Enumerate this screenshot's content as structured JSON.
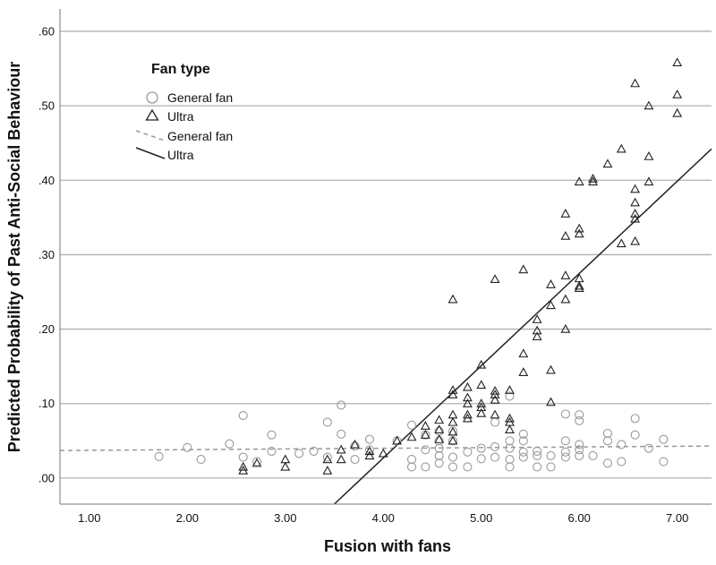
{
  "chart_data": {
    "type": "scatter",
    "xlabel": "Fusion with fans",
    "ylabel": "Predicted Probability of Past Anti-Social Behaviour",
    "xlim": [
      0.7,
      7.35
    ],
    "ylim": [
      -0.035,
      0.63
    ],
    "x_ticks": [
      "1.00",
      "2.00",
      "3.00",
      "4.00",
      "5.00",
      "6.00",
      "7.00"
    ],
    "y_ticks": [
      ".00",
      ".10",
      ".20",
      ".30",
      ".40",
      ".50",
      ".60"
    ],
    "grid": "horizontal",
    "legend": {
      "title": "Fan type",
      "placement": "top-left",
      "entries": [
        "General fan",
        "Ultra",
        "General fan",
        "Ultra"
      ]
    },
    "colors": {
      "general": "#999999",
      "ultra": "#222222",
      "grid": "#b0b0b0"
    },
    "series": [
      {
        "name": "General fan",
        "marker": "circle",
        "points": [
          [
            1.71,
            0.029
          ],
          [
            2.0,
            0.041
          ],
          [
            2.14,
            0.025
          ],
          [
            2.43,
            0.046
          ],
          [
            2.57,
            0.084
          ],
          [
            2.57,
            0.028
          ],
          [
            2.71,
            0.022
          ],
          [
            2.86,
            0.058
          ],
          [
            2.86,
            0.036
          ],
          [
            3.14,
            0.033
          ],
          [
            3.29,
            0.036
          ],
          [
            3.43,
            0.075
          ],
          [
            3.43,
            0.028
          ],
          [
            3.57,
            0.098
          ],
          [
            3.57,
            0.059
          ],
          [
            3.71,
            0.043
          ],
          [
            3.71,
            0.025
          ],
          [
            3.86,
            0.052
          ],
          [
            3.86,
            0.038
          ],
          [
            4.14,
            0.05
          ],
          [
            4.29,
            0.071
          ],
          [
            4.29,
            0.025
          ],
          [
            4.29,
            0.015
          ],
          [
            4.43,
            0.058
          ],
          [
            4.43,
            0.038
          ],
          [
            4.43,
            0.015
          ],
          [
            4.57,
            0.063
          ],
          [
            4.57,
            0.05
          ],
          [
            4.57,
            0.04
          ],
          [
            4.57,
            0.03
          ],
          [
            4.57,
            0.02
          ],
          [
            4.71,
            0.063
          ],
          [
            4.71,
            0.05
          ],
          [
            4.71,
            0.028
          ],
          [
            4.71,
            0.015
          ],
          [
            4.86,
            0.035
          ],
          [
            4.86,
            0.015
          ],
          [
            5.0,
            0.04
          ],
          [
            5.0,
            0.026
          ],
          [
            5.14,
            0.075
          ],
          [
            5.14,
            0.042
          ],
          [
            5.14,
            0.028
          ],
          [
            5.29,
            0.11
          ],
          [
            5.29,
            0.05
          ],
          [
            5.29,
            0.04
          ],
          [
            5.29,
            0.025
          ],
          [
            5.29,
            0.015
          ],
          [
            5.43,
            0.059
          ],
          [
            5.43,
            0.05
          ],
          [
            5.43,
            0.035
          ],
          [
            5.43,
            0.028
          ],
          [
            5.57,
            0.036
          ],
          [
            5.57,
            0.03
          ],
          [
            5.57,
            0.015
          ],
          [
            5.71,
            0.03
          ],
          [
            5.71,
            0.015
          ],
          [
            5.86,
            0.086
          ],
          [
            5.86,
            0.05
          ],
          [
            5.86,
            0.035
          ],
          [
            5.86,
            0.028
          ],
          [
            6.0,
            0.085
          ],
          [
            6.0,
            0.077
          ],
          [
            6.0,
            0.045
          ],
          [
            6.0,
            0.038
          ],
          [
            6.0,
            0.03
          ],
          [
            6.14,
            0.03
          ],
          [
            6.29,
            0.06
          ],
          [
            6.29,
            0.05
          ],
          [
            6.29,
            0.02
          ],
          [
            6.43,
            0.045
          ],
          [
            6.43,
            0.022
          ],
          [
            6.57,
            0.08
          ],
          [
            6.57,
            0.058
          ],
          [
            6.71,
            0.04
          ],
          [
            6.86,
            0.052
          ],
          [
            6.86,
            0.022
          ]
        ]
      },
      {
        "name": "Ultra",
        "marker": "triangle",
        "points": [
          [
            2.57,
            0.015
          ],
          [
            2.57,
            0.01
          ],
          [
            2.71,
            0.02
          ],
          [
            3.0,
            0.025
          ],
          [
            3.0,
            0.015
          ],
          [
            3.43,
            0.025
          ],
          [
            3.43,
            0.01
          ],
          [
            3.57,
            0.038
          ],
          [
            3.57,
            0.025
          ],
          [
            3.71,
            0.045
          ],
          [
            3.86,
            0.036
          ],
          [
            3.86,
            0.03
          ],
          [
            4.0,
            0.033
          ],
          [
            4.14,
            0.05
          ],
          [
            4.29,
            0.055
          ],
          [
            4.43,
            0.07
          ],
          [
            4.43,
            0.058
          ],
          [
            4.57,
            0.078
          ],
          [
            4.57,
            0.065
          ],
          [
            4.57,
            0.052
          ],
          [
            4.71,
            0.24
          ],
          [
            4.71,
            0.118
          ],
          [
            4.71,
            0.112
          ],
          [
            4.71,
            0.085
          ],
          [
            4.71,
            0.075
          ],
          [
            4.71,
            0.062
          ],
          [
            4.71,
            0.05
          ],
          [
            4.86,
            0.122
          ],
          [
            4.86,
            0.108
          ],
          [
            4.86,
            0.1
          ],
          [
            4.86,
            0.085
          ],
          [
            4.86,
            0.08
          ],
          [
            5.0,
            0.152
          ],
          [
            5.0,
            0.125
          ],
          [
            5.0,
            0.1
          ],
          [
            5.0,
            0.095
          ],
          [
            5.0,
            0.087
          ],
          [
            5.14,
            0.267
          ],
          [
            5.14,
            0.117
          ],
          [
            5.14,
            0.112
          ],
          [
            5.14,
            0.105
          ],
          [
            5.14,
            0.085
          ],
          [
            5.29,
            0.118
          ],
          [
            5.29,
            0.08
          ],
          [
            5.29,
            0.075
          ],
          [
            5.29,
            0.065
          ],
          [
            5.43,
            0.28
          ],
          [
            5.43,
            0.167
          ],
          [
            5.43,
            0.142
          ],
          [
            5.57,
            0.213
          ],
          [
            5.57,
            0.198
          ],
          [
            5.57,
            0.19
          ],
          [
            5.71,
            0.26
          ],
          [
            5.71,
            0.232
          ],
          [
            5.71,
            0.145
          ],
          [
            5.71,
            0.102
          ],
          [
            5.86,
            0.355
          ],
          [
            5.86,
            0.325
          ],
          [
            5.86,
            0.272
          ],
          [
            5.86,
            0.24
          ],
          [
            5.86,
            0.2
          ],
          [
            6.0,
            0.398
          ],
          [
            6.0,
            0.335
          ],
          [
            6.0,
            0.328
          ],
          [
            6.0,
            0.268
          ],
          [
            6.0,
            0.258
          ],
          [
            6.0,
            0.255
          ],
          [
            6.14,
            0.402
          ],
          [
            6.14,
            0.398
          ],
          [
            6.29,
            0.422
          ],
          [
            6.43,
            0.442
          ],
          [
            6.43,
            0.315
          ],
          [
            6.57,
            0.53
          ],
          [
            6.57,
            0.388
          ],
          [
            6.57,
            0.37
          ],
          [
            6.57,
            0.355
          ],
          [
            6.57,
            0.348
          ],
          [
            6.57,
            0.318
          ],
          [
            6.71,
            0.5
          ],
          [
            6.71,
            0.432
          ],
          [
            6.71,
            0.398
          ],
          [
            7.0,
            0.558
          ],
          [
            7.0,
            0.515
          ],
          [
            7.0,
            0.49
          ]
        ]
      }
    ],
    "fit_lines": [
      {
        "name": "General fan",
        "style": "dashed",
        "x": [
          0.7,
          7.35
        ],
        "y": [
          0.037,
          0.043
        ]
      },
      {
        "name": "Ultra",
        "style": "solid",
        "x": [
          3.5,
          7.35
        ],
        "y": [
          -0.035,
          0.442
        ]
      }
    ]
  }
}
